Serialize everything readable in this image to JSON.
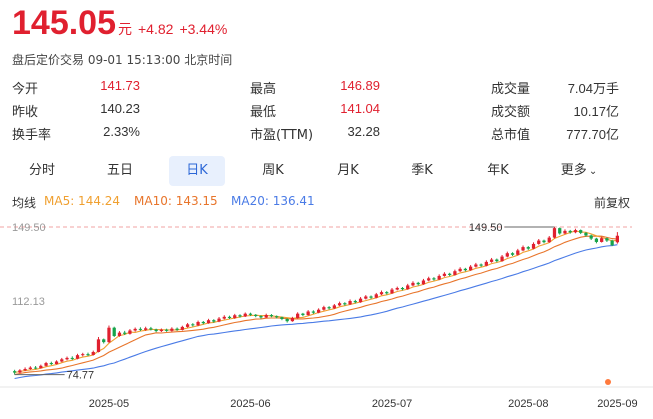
{
  "header": {
    "price": "145.05",
    "unit": "元",
    "change": "+4.82",
    "change_pct": "+3.44%",
    "status": "盘后定价交易 09-01 15:13:00 北京时间"
  },
  "stats": [
    [
      {
        "label": "今开",
        "value": "141.73",
        "tone": "red"
      },
      {
        "label": "最高",
        "value": "146.89",
        "tone": "red"
      },
      {
        "label": "成交量",
        "value": "7.04万手",
        "tone": "dark"
      }
    ],
    [
      {
        "label": "昨收",
        "value": "140.23",
        "tone": "dark"
      },
      {
        "label": "最低",
        "value": "141.04",
        "tone": "red"
      },
      {
        "label": "成交额",
        "value": "10.17亿",
        "tone": "dark"
      }
    ],
    [
      {
        "label": "换手率",
        "value": "2.33%",
        "tone": "dark"
      },
      {
        "label": "市盈(TTM)",
        "value": "32.28",
        "tone": "dark"
      },
      {
        "label": "总市值",
        "value": "777.70亿",
        "tone": "dark"
      }
    ]
  ],
  "tabs": [
    "分时",
    "五日",
    "日K",
    "周K",
    "月K",
    "季K",
    "年K",
    "更多"
  ],
  "active_tab": "日K",
  "ma": {
    "label": "均线",
    "ma5": "MA5: 144.24",
    "ma10": "MA10: 143.15",
    "ma20": "MA20: 136.41",
    "adjust": "前复权",
    "colors": {
      "ma5": "#f0a030",
      "ma10": "#e8752b",
      "ma20": "#4a7be6",
      "up": "#e0202f",
      "down": "#16a34a"
    }
  },
  "chart_data": {
    "type": "candlestick",
    "y_ticks": [
      "149.50",
      "112.13"
    ],
    "x_ticks": [
      "2025-05",
      "2025-06",
      "2025-07",
      "2025-08",
      "2025-09"
    ],
    "high_marker": "149.50",
    "low_marker": "74.77",
    "ylim": [
      70,
      152
    ],
    "dashed_reference": 149.5,
    "candles": [
      [
        76.5,
        75.8,
        77.2,
        74.77
      ],
      [
        75.8,
        76.9,
        77.5,
        75.5
      ],
      [
        76.9,
        77.6,
        78.4,
        76.5
      ],
      [
        77.6,
        78.3,
        79.0,
        77.2
      ],
      [
        78.3,
        78.0,
        79.1,
        77.5
      ],
      [
        78.0,
        79.2,
        79.8,
        77.8
      ],
      [
        79.2,
        80.6,
        81.2,
        78.9
      ],
      [
        80.6,
        80.1,
        81.3,
        79.6
      ],
      [
        80.1,
        81.4,
        82.0,
        79.9
      ],
      [
        81.4,
        82.5,
        83.2,
        81.0
      ],
      [
        82.5,
        83.2,
        83.9,
        82.0
      ],
      [
        83.2,
        82.8,
        84.0,
        82.2
      ],
      [
        82.8,
        84.6,
        85.3,
        82.5
      ],
      [
        84.6,
        85.1,
        85.8,
        84.0
      ],
      [
        85.1,
        84.7,
        85.9,
        84.2
      ],
      [
        84.7,
        86.2,
        86.9,
        84.4
      ],
      [
        86.2,
        92.6,
        93.8,
        86.0
      ],
      [
        92.6,
        91.2,
        93.0,
        90.5
      ],
      [
        91.2,
        98.5,
        99.6,
        90.8
      ],
      [
        98.5,
        94.3,
        99.0,
        93.8
      ],
      [
        94.3,
        96.0,
        96.8,
        93.9
      ],
      [
        96.0,
        95.4,
        96.9,
        94.8
      ],
      [
        95.4,
        97.1,
        97.8,
        95.0
      ],
      [
        97.1,
        97.9,
        98.6,
        96.5
      ],
      [
        97.9,
        97.4,
        98.7,
        96.8
      ],
      [
        97.4,
        98.2,
        99.0,
        96.9
      ],
      [
        98.2,
        97.6,
        98.9,
        97.1
      ],
      [
        97.6,
        96.8,
        98.0,
        96.2
      ],
      [
        96.8,
        97.5,
        98.1,
        96.3
      ],
      [
        97.5,
        96.9,
        98.0,
        96.4
      ],
      [
        96.9,
        98.0,
        98.7,
        96.5
      ],
      [
        98.0,
        97.4,
        98.6,
        96.9
      ],
      [
        97.4,
        98.9,
        99.5,
        97.1
      ],
      [
        98.9,
        100.2,
        100.9,
        98.5
      ],
      [
        100.2,
        99.7,
        100.8,
        99.1
      ],
      [
        99.7,
        101.4,
        102.1,
        99.3
      ],
      [
        101.4,
        100.8,
        101.9,
        100.2
      ],
      [
        100.8,
        102.3,
        103.0,
        100.5
      ],
      [
        102.3,
        101.6,
        102.8,
        101.0
      ],
      [
        101.6,
        103.1,
        103.9,
        101.3
      ],
      [
        103.1,
        104.0,
        104.8,
        102.7
      ],
      [
        104.0,
        103.4,
        104.6,
        102.9
      ],
      [
        103.4,
        104.8,
        105.5,
        103.0
      ],
      [
        104.8,
        104.2,
        105.3,
        103.6
      ],
      [
        104.2,
        105.6,
        106.2,
        103.9
      ],
      [
        105.6,
        105.0,
        106.1,
        104.5
      ],
      [
        105.0,
        104.4,
        105.4,
        103.8
      ],
      [
        104.4,
        103.7,
        104.8,
        103.1
      ],
      [
        103.7,
        104.9,
        105.6,
        103.4
      ],
      [
        104.9,
        104.3,
        105.4,
        103.8
      ],
      [
        104.3,
        103.8,
        104.7,
        103.2
      ],
      [
        103.8,
        102.9,
        104.1,
        102.3
      ],
      [
        102.9,
        101.8,
        103.3,
        101.1
      ],
      [
        101.8,
        103.4,
        104.0,
        101.5
      ],
      [
        103.4,
        105.6,
        106.3,
        103.1
      ],
      [
        105.6,
        104.9,
        106.0,
        104.3
      ],
      [
        104.9,
        106.7,
        107.4,
        104.6
      ],
      [
        106.7,
        106.1,
        107.3,
        105.5
      ],
      [
        106.1,
        107.6,
        108.3,
        105.8
      ],
      [
        107.6,
        108.9,
        109.6,
        107.2
      ],
      [
        108.9,
        108.3,
        109.4,
        107.7
      ],
      [
        108.3,
        109.8,
        110.5,
        108.0
      ],
      [
        109.8,
        110.9,
        111.7,
        109.4
      ],
      [
        110.9,
        110.3,
        111.4,
        109.7
      ],
      [
        110.3,
        112.0,
        112.8,
        110.0
      ],
      [
        112.0,
        111.4,
        112.6,
        110.8
      ],
      [
        111.4,
        113.2,
        114.0,
        111.1
      ],
      [
        113.2,
        114.3,
        115.0,
        112.8
      ],
      [
        114.3,
        113.7,
        114.8,
        113.1
      ],
      [
        113.7,
        115.4,
        116.1,
        113.4
      ],
      [
        115.4,
        116.5,
        117.3,
        115.0
      ],
      [
        116.5,
        115.9,
        117.0,
        115.3
      ],
      [
        115.9,
        117.8,
        118.6,
        115.6
      ],
      [
        117.8,
        118.6,
        119.3,
        117.4
      ],
      [
        118.6,
        118.0,
        119.1,
        117.4
      ],
      [
        118.0,
        119.9,
        120.7,
        117.7
      ],
      [
        119.9,
        121.2,
        122.0,
        119.5
      ],
      [
        121.2,
        120.5,
        121.7,
        119.9
      ],
      [
        120.5,
        122.4,
        123.2,
        120.2
      ],
      [
        122.4,
        123.5,
        124.3,
        122.0
      ],
      [
        123.5,
        122.9,
        124.1,
        122.3
      ],
      [
        122.9,
        124.7,
        125.5,
        122.6
      ],
      [
        124.7,
        125.8,
        126.6,
        124.3
      ],
      [
        125.8,
        125.2,
        126.3,
        124.6
      ],
      [
        125.2,
        127.1,
        127.9,
        124.9
      ],
      [
        127.1,
        128.3,
        129.1,
        126.7
      ],
      [
        128.3,
        127.6,
        128.8,
        127.0
      ],
      [
        127.6,
        129.4,
        130.2,
        127.3
      ],
      [
        129.4,
        130.5,
        131.3,
        129.0
      ],
      [
        130.5,
        129.9,
        131.0,
        129.3
      ],
      [
        129.9,
        131.8,
        132.6,
        129.6
      ],
      [
        131.8,
        133.0,
        133.8,
        131.4
      ],
      [
        133.0,
        132.2,
        133.5,
        131.6
      ],
      [
        132.2,
        134.5,
        135.3,
        131.9
      ],
      [
        134.5,
        136.2,
        137.0,
        134.1
      ],
      [
        136.2,
        135.4,
        136.7,
        134.8
      ],
      [
        135.4,
        137.6,
        138.4,
        135.1
      ],
      [
        137.6,
        139.3,
        140.1,
        137.2
      ],
      [
        139.3,
        138.5,
        139.8,
        137.9
      ],
      [
        138.5,
        140.9,
        141.7,
        138.2
      ],
      [
        140.9,
        142.6,
        143.4,
        140.5
      ],
      [
        142.6,
        141.8,
        143.1,
        141.2
      ],
      [
        141.8,
        144.1,
        144.9,
        141.5
      ],
      [
        144.1,
        148.9,
        149.5,
        143.7
      ],
      [
        148.9,
        146.2,
        149.2,
        145.6
      ],
      [
        146.2,
        147.5,
        148.3,
        145.8
      ],
      [
        147.5,
        146.8,
        148.0,
        146.1
      ],
      [
        146.8,
        147.9,
        148.6,
        146.3
      ],
      [
        147.9,
        146.5,
        148.2,
        145.9
      ],
      [
        146.5,
        145.2,
        146.9,
        144.6
      ],
      [
        145.2,
        143.6,
        145.6,
        142.9
      ],
      [
        143.6,
        141.9,
        144.0,
        141.2
      ],
      [
        141.9,
        143.8,
        144.6,
        141.6
      ],
      [
        143.8,
        142.6,
        144.1,
        141.9
      ],
      [
        142.6,
        140.23,
        143.0,
        139.8
      ],
      [
        141.73,
        145.05,
        146.89,
        141.04
      ]
    ]
  }
}
